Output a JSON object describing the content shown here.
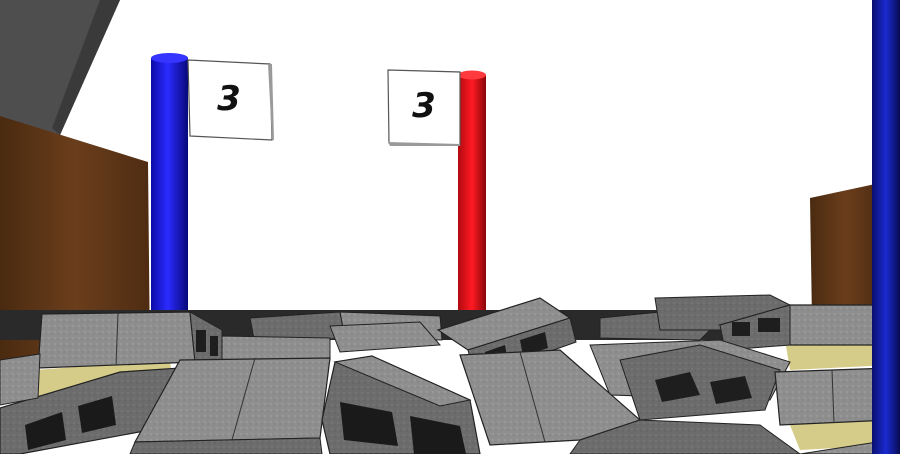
{
  "scene": {
    "flags": [
      {
        "id": "blue",
        "label": "3",
        "color": "#1a1ad6"
      },
      {
        "id": "red",
        "label": "3",
        "color": "#e0141a"
      }
    ],
    "walls": {
      "color": "#5a3416"
    },
    "blocks": {
      "color": "#8f8f8f"
    },
    "right_post": {
      "color": "#101880"
    }
  }
}
